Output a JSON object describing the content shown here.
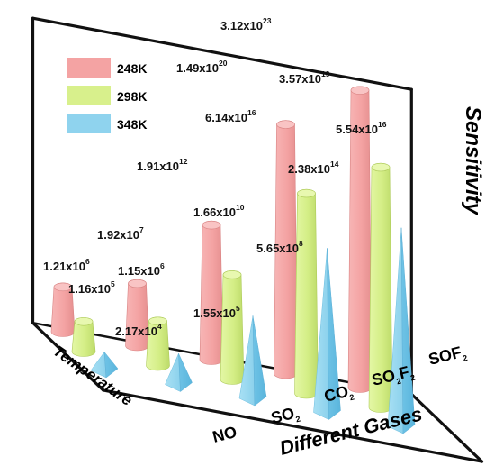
{
  "chart_data": {
    "type": "bar",
    "subtype": "3d-cone-cylinder-pyramid",
    "x_axis_title": "Different Gases",
    "y_axis_title": "Temperature",
    "z_axis_title": "Sensitivity",
    "categories": [
      "NO",
      "SO2",
      "CO2",
      "SO2F2",
      "SOF2"
    ],
    "category_labels": [
      {
        "base": "NO",
        "sub": ""
      },
      {
        "base": "SO",
        "sub": "2"
      },
      {
        "base": "CO",
        "sub": "2"
      },
      {
        "base": "SO",
        "sub": "2",
        "base2": "F",
        "sub2": "2"
      },
      {
        "base": "SOF",
        "sub": "2"
      }
    ],
    "series": [
      {
        "name": "248K",
        "color": "#f4a3a3",
        "shape": "cylinder",
        "values": [
          1210000.0,
          19200000.0,
          1910000000000.0,
          1.49e+20,
          3.12e+23
        ],
        "labels": [
          {
            "m": "1.21x10",
            "e": "6"
          },
          {
            "m": "1.92x10",
            "e": "7"
          },
          {
            "m": "1.91x10",
            "e": "12"
          },
          {
            "m": "1.49x10",
            "e": "20"
          },
          {
            "m": "3.12x10",
            "e": "23"
          }
        ]
      },
      {
        "name": "298K",
        "color": "#d8f08c",
        "shape": "cylinder",
        "values": [
          116000.0,
          1150000.0,
          16600000000.0,
          6.14e+16,
          3.57e+19
        ],
        "labels": [
          {
            "m": "1.16x10",
            "e": "5"
          },
          {
            "m": "1.15x10",
            "e": "6"
          },
          {
            "m": "1.66x10",
            "e": "10"
          },
          {
            "m": "6.14x10",
            "e": "16"
          },
          {
            "m": "3.57x10",
            "e": "19"
          }
        ]
      },
      {
        "name": "348K",
        "color": "#8fd3ee",
        "shape": "pyramid",
        "values": [
          21700.0,
          155000.0,
          565000000.0,
          238000000000000.0,
          5.54e+16
        ],
        "labels": [
          {
            "m": "2.17x10",
            "e": "4"
          },
          {
            "m": "1.55x10",
            "e": "5"
          },
          {
            "m": "5.65x10",
            "e": "8"
          },
          {
            "m": "2.38x10",
            "e": "14"
          },
          {
            "m": "5.54x10",
            "e": "16"
          }
        ]
      }
    ],
    "legend_position": "top-left",
    "grid": false
  }
}
